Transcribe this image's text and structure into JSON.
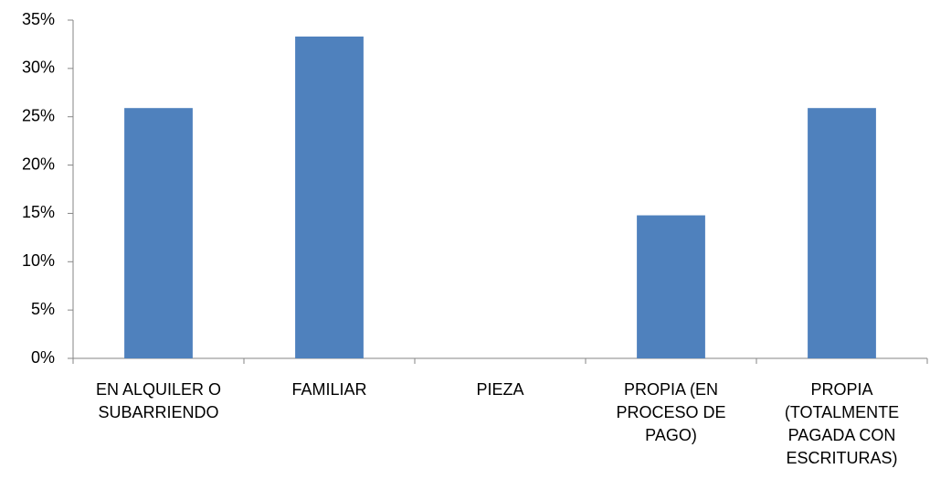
{
  "chart_data": {
    "type": "bar",
    "categories": [
      "EN ALQUILER O SUBARRIENDO",
      "FAMILIAR",
      "PIEZA",
      "PROPIA (EN PROCESO DE PAGO)",
      "PROPIA (TOTALMENTE PAGADA CON ESCRITURAS)"
    ],
    "values": [
      25.9,
      33.3,
      0,
      14.8,
      25.9
    ],
    "color": "#4f81bd",
    "ylim": [
      0,
      35
    ],
    "yticks": [
      {
        "value": 0,
        "label": "0%"
      },
      {
        "value": 5,
        "label": "5%"
      },
      {
        "value": 10,
        "label": "10%"
      },
      {
        "value": 15,
        "label": "15%"
      },
      {
        "value": 20,
        "label": "20%"
      },
      {
        "value": 25,
        "label": "25%"
      },
      {
        "value": 30,
        "label": "30%"
      },
      {
        "value": 35,
        "label": "35%"
      }
    ],
    "grid": false
  }
}
